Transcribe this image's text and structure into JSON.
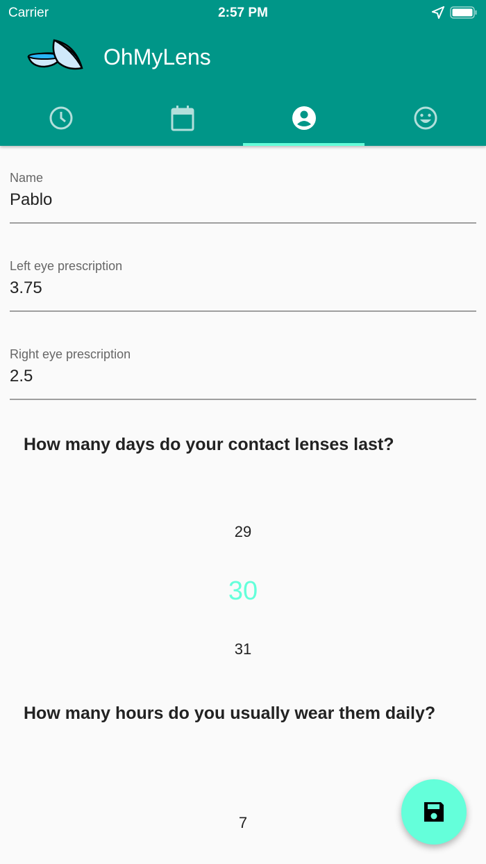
{
  "status": {
    "carrier": "Carrier",
    "time": "2:57 PM"
  },
  "app": {
    "title": "OhMyLens",
    "primary": "#009688",
    "accent": "#64ffda"
  },
  "tabs": [
    {
      "icon": "clock-icon"
    },
    {
      "icon": "calendar-icon"
    },
    {
      "icon": "account-circle-icon",
      "active": true
    },
    {
      "icon": "smiley-icon"
    }
  ],
  "form": {
    "name": {
      "label": "Name",
      "value": "Pablo"
    },
    "left": {
      "label": "Left eye prescription",
      "value": "3.75"
    },
    "right": {
      "label": "Right eye prescription",
      "value": "2.5"
    }
  },
  "days": {
    "question": "How many days do your contact lenses last?",
    "prev": "29",
    "selected": "30",
    "next": "31"
  },
  "hours": {
    "question": "How many hours do you usually wear them daily?",
    "selected": "7"
  },
  "fab": {
    "icon": "save-icon"
  }
}
